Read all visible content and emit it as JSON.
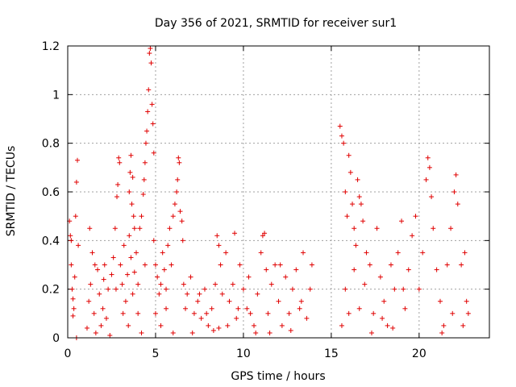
{
  "chart_data": {
    "type": "scatter",
    "title": "Day 356 of 2021, SRMTID for receiver sur1",
    "xlabel": "GPS time / hours",
    "ylabel": "SRMTID / TECUs",
    "xlim": [
      0,
      24
    ],
    "ylim": [
      0,
      1.2
    ],
    "xticks": [
      0,
      5,
      10,
      15,
      20
    ],
    "xtick_labels": [
      "0",
      "5",
      "10",
      "15",
      "20"
    ],
    "yticks": [
      0,
      0.2,
      0.4,
      0.6,
      0.8,
      1.0,
      1.2
    ],
    "ytick_labels": [
      "0",
      "0.2",
      "0.4",
      "0.6",
      "0.8",
      "1",
      "1.2"
    ],
    "grid": true,
    "marker": "+",
    "color": "#e00000",
    "series": [
      {
        "name": "sur1",
        "points": [
          [
            0.1,
            0.48
          ],
          [
            0.15,
            0.42
          ],
          [
            0.2,
            0.3
          ],
          [
            0.25,
            0.2
          ],
          [
            0.3,
            0.16
          ],
          [
            0.35,
            0.12
          ],
          [
            0.4,
            0.25
          ],
          [
            0.45,
            0.5
          ],
          [
            0.5,
            0.64
          ],
          [
            0.55,
            0.73
          ],
          [
            0.6,
            0.38
          ],
          [
            0.5,
            0.0
          ],
          [
            0.2,
            0.4
          ],
          [
            0.3,
            0.09
          ],
          [
            1.1,
            0.04
          ],
          [
            1.2,
            0.15
          ],
          [
            1.3,
            0.22
          ],
          [
            1.4,
            0.35
          ],
          [
            1.5,
            0.1
          ],
          [
            1.6,
            0.02
          ],
          [
            1.7,
            0.28
          ],
          [
            1.8,
            0.18
          ],
          [
            1.9,
            0.05
          ],
          [
            2.0,
            0.12
          ],
          [
            2.1,
            0.3
          ],
          [
            2.2,
            0.08
          ],
          [
            2.3,
            0.2
          ],
          [
            2.4,
            0.01
          ],
          [
            2.5,
            0.26
          ],
          [
            1.25,
            0.45
          ],
          [
            1.55,
            0.3
          ],
          [
            2.05,
            0.24
          ],
          [
            2.6,
            0.33
          ],
          [
            2.7,
            0.45
          ],
          [
            2.8,
            0.58
          ],
          [
            2.85,
            0.63
          ],
          [
            2.9,
            0.74
          ],
          [
            2.95,
            0.72
          ],
          [
            3.0,
            0.3
          ],
          [
            3.1,
            0.22
          ],
          [
            3.2,
            0.38
          ],
          [
            3.3,
            0.15
          ],
          [
            3.4,
            0.26
          ],
          [
            3.5,
            0.42
          ],
          [
            3.6,
            0.33
          ],
          [
            3.7,
            0.18
          ],
          [
            3.8,
            0.27
          ],
          [
            2.75,
            0.2
          ],
          [
            3.15,
            0.1
          ],
          [
            3.45,
            0.05
          ],
          [
            3.5,
            0.6
          ],
          [
            3.55,
            0.68
          ],
          [
            3.6,
            0.75
          ],
          [
            3.65,
            0.55
          ],
          [
            3.7,
            0.66
          ],
          [
            3.75,
            0.5
          ],
          [
            3.8,
            0.45
          ],
          [
            3.9,
            0.35
          ],
          [
            4.0,
            0.22
          ],
          [
            4.1,
            0.45
          ],
          [
            4.2,
            0.5
          ],
          [
            4.3,
            0.59
          ],
          [
            4.35,
            0.65
          ],
          [
            4.4,
            0.72
          ],
          [
            4.45,
            0.8
          ],
          [
            4.5,
            0.85
          ],
          [
            4.55,
            0.93
          ],
          [
            4.6,
            1.02
          ],
          [
            4.65,
            1.17
          ],
          [
            4.7,
            1.19
          ],
          [
            4.75,
            1.13
          ],
          [
            4.8,
            0.96
          ],
          [
            4.85,
            0.88
          ],
          [
            4.9,
            0.76
          ],
          [
            4.0,
            0.1
          ],
          [
            4.2,
            0.02
          ],
          [
            4.4,
            0.3
          ],
          [
            4.9,
            0.4
          ],
          [
            5.0,
            0.3
          ],
          [
            5.1,
            0.25
          ],
          [
            5.2,
            0.18
          ],
          [
            5.3,
            0.22
          ],
          [
            5.4,
            0.35
          ],
          [
            5.5,
            0.28
          ],
          [
            5.6,
            0.2
          ],
          [
            5.7,
            0.38
          ],
          [
            5.8,
            0.45
          ],
          [
            5.9,
            0.3
          ],
          [
            6.0,
            0.5
          ],
          [
            6.1,
            0.55
          ],
          [
            6.2,
            0.6
          ],
          [
            6.25,
            0.65
          ],
          [
            6.3,
            0.74
          ],
          [
            6.35,
            0.72
          ],
          [
            6.4,
            0.52
          ],
          [
            6.5,
            0.48
          ],
          [
            6.55,
            0.4
          ],
          [
            5.0,
            0.1
          ],
          [
            5.3,
            0.05
          ],
          [
            5.6,
            0.12
          ],
          [
            6.0,
            0.02
          ],
          [
            6.6,
            0.22
          ],
          [
            6.8,
            0.18
          ],
          [
            7.0,
            0.25
          ],
          [
            7.2,
            0.1
          ],
          [
            7.4,
            0.15
          ],
          [
            7.6,
            0.08
          ],
          [
            7.8,
            0.2
          ],
          [
            8.0,
            0.05
          ],
          [
            8.2,
            0.12
          ],
          [
            8.4,
            0.22
          ],
          [
            8.6,
            0.04
          ],
          [
            8.8,
            0.18
          ],
          [
            6.7,
            0.12
          ],
          [
            7.1,
            0.02
          ],
          [
            7.5,
            0.18
          ],
          [
            7.9,
            0.1
          ],
          [
            8.3,
            0.03
          ],
          [
            8.5,
            0.42
          ],
          [
            8.6,
            0.38
          ],
          [
            8.7,
            0.3
          ],
          [
            9.0,
            0.35
          ],
          [
            9.2,
            0.15
          ],
          [
            9.4,
            0.22
          ],
          [
            9.5,
            0.43
          ],
          [
            9.6,
            0.08
          ],
          [
            9.8,
            0.3
          ],
          [
            10.0,
            0.2
          ],
          [
            10.2,
            0.12
          ],
          [
            10.4,
            0.1
          ],
          [
            10.6,
            0.05
          ],
          [
            10.8,
            0.18
          ],
          [
            9.1,
            0.05
          ],
          [
            9.7,
            0.12
          ],
          [
            10.3,
            0.25
          ],
          [
            10.7,
            0.02
          ],
          [
            11.0,
            0.35
          ],
          [
            11.1,
            0.42
          ],
          [
            11.2,
            0.43
          ],
          [
            11.3,
            0.28
          ],
          [
            11.4,
            0.1
          ],
          [
            11.6,
            0.22
          ],
          [
            11.8,
            0.3
          ],
          [
            12.0,
            0.15
          ],
          [
            12.2,
            0.05
          ],
          [
            12.4,
            0.25
          ],
          [
            12.6,
            0.1
          ],
          [
            12.8,
            0.2
          ],
          [
            13.0,
            0.28
          ],
          [
            13.2,
            0.12
          ],
          [
            13.4,
            0.35
          ],
          [
            13.6,
            0.08
          ],
          [
            13.8,
            0.2
          ],
          [
            13.9,
            0.3
          ],
          [
            11.5,
            0.02
          ],
          [
            12.1,
            0.3
          ],
          [
            12.7,
            0.03
          ],
          [
            13.3,
            0.15
          ],
          [
            15.5,
            0.87
          ],
          [
            15.6,
            0.83
          ],
          [
            15.7,
            0.8
          ],
          [
            15.8,
            0.6
          ],
          [
            15.9,
            0.5
          ],
          [
            16.0,
            0.75
          ],
          [
            16.1,
            0.68
          ],
          [
            16.2,
            0.55
          ],
          [
            16.3,
            0.45
          ],
          [
            16.4,
            0.38
          ],
          [
            16.5,
            0.65
          ],
          [
            16.6,
            0.58
          ],
          [
            16.7,
            0.55
          ],
          [
            16.8,
            0.48
          ],
          [
            17.0,
            0.35
          ],
          [
            15.6,
            0.05
          ],
          [
            15.8,
            0.2
          ],
          [
            16.0,
            0.1
          ],
          [
            16.3,
            0.28
          ],
          [
            16.6,
            0.12
          ],
          [
            16.9,
            0.22
          ],
          [
            17.2,
            0.3
          ],
          [
            17.4,
            0.1
          ],
          [
            17.6,
            0.45
          ],
          [
            17.8,
            0.25
          ],
          [
            18.0,
            0.15
          ],
          [
            18.2,
            0.05
          ],
          [
            18.4,
            0.3
          ],
          [
            18.6,
            0.2
          ],
          [
            18.8,
            0.35
          ],
          [
            19.0,
            0.48
          ],
          [
            19.2,
            0.12
          ],
          [
            19.4,
            0.28
          ],
          [
            19.6,
            0.42
          ],
          [
            19.8,
            0.5
          ],
          [
            17.3,
            0.02
          ],
          [
            17.9,
            0.08
          ],
          [
            18.5,
            0.04
          ],
          [
            19.1,
            0.2
          ],
          [
            20.0,
            0.2
          ],
          [
            20.2,
            0.35
          ],
          [
            20.4,
            0.65
          ],
          [
            20.5,
            0.74
          ],
          [
            20.6,
            0.7
          ],
          [
            20.7,
            0.58
          ],
          [
            20.8,
            0.45
          ],
          [
            21.0,
            0.28
          ],
          [
            21.2,
            0.15
          ],
          [
            21.4,
            0.05
          ],
          [
            21.6,
            0.3
          ],
          [
            21.8,
            0.45
          ],
          [
            22.0,
            0.6
          ],
          [
            22.1,
            0.67
          ],
          [
            22.2,
            0.55
          ],
          [
            22.4,
            0.3
          ],
          [
            22.6,
            0.35
          ],
          [
            22.7,
            0.15
          ],
          [
            22.8,
            0.1
          ],
          [
            21.3,
            0.02
          ],
          [
            21.9,
            0.1
          ],
          [
            22.5,
            0.05
          ]
        ]
      }
    ]
  }
}
